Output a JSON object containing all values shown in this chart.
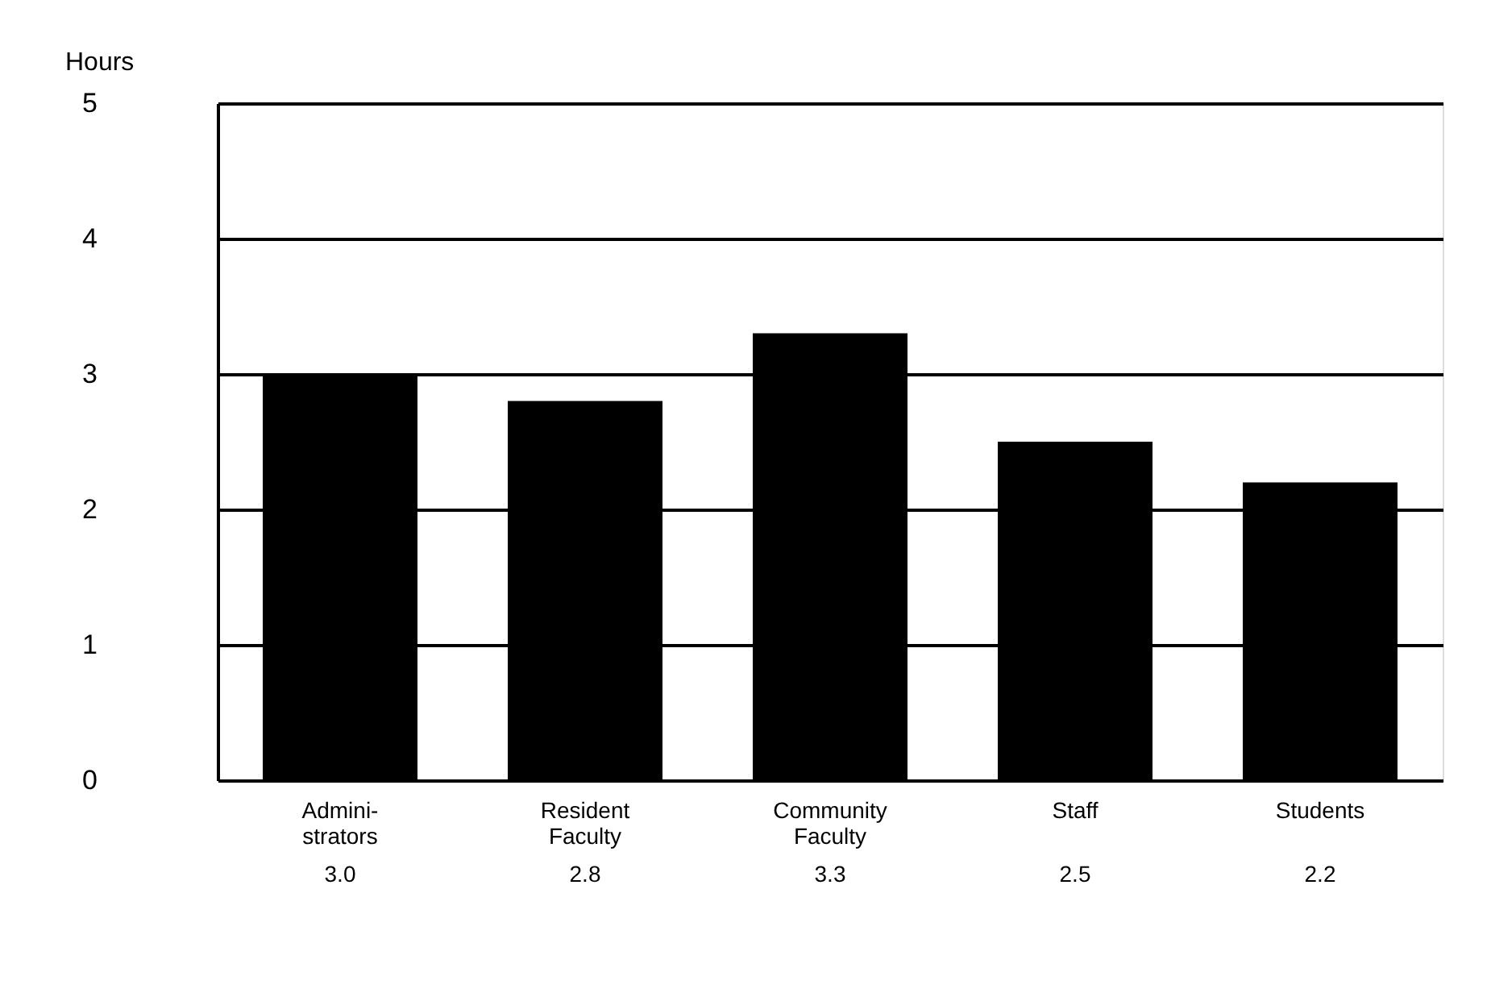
{
  "chart_data": {
    "type": "bar",
    "ylabel": "Hours",
    "categories": [
      "Admini-\nstrators",
      "Resident\nFaculty",
      "Community\nFaculty",
      "Staff",
      "Students"
    ],
    "values": [
      3.0,
      2.8,
      3.3,
      2.5,
      2.2
    ],
    "value_labels": [
      "3.0",
      "2.8",
      "3.3",
      "2.5",
      "2.2"
    ],
    "color": "#000000",
    "ylim": [
      0,
      5
    ],
    "yticks": [
      0,
      1,
      2,
      3,
      4,
      5
    ],
    "grid": "y"
  }
}
